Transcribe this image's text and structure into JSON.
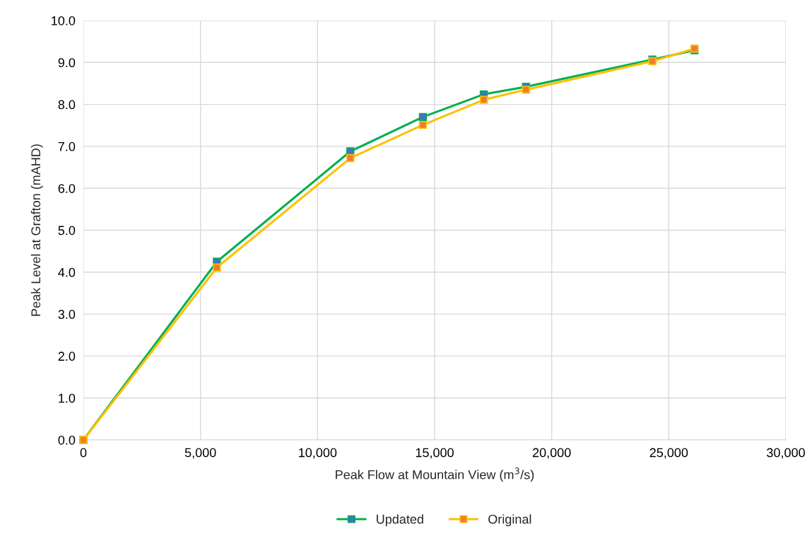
{
  "chart_data": {
    "type": "line",
    "xlabel": "Peak Flow at Mountain View (m$^{3}$/s)",
    "ylabel": "Peak Level at Grafton (mAHD)",
    "xlim": [
      0,
      30000
    ],
    "ylim": [
      0,
      10
    ],
    "xticks": [
      {
        "value": 0,
        "label": "0"
      },
      {
        "value": 5000,
        "label": "5,000"
      },
      {
        "value": 10000,
        "label": "10,000"
      },
      {
        "value": 15000,
        "label": "15,000"
      },
      {
        "value": 20000,
        "label": "20,000"
      },
      {
        "value": 25000,
        "label": "25,000"
      },
      {
        "value": 30000,
        "label": "30,000"
      }
    ],
    "yticks": [
      {
        "value": 0,
        "label": "0.0"
      },
      {
        "value": 1,
        "label": "1.0"
      },
      {
        "value": 2,
        "label": "2.0"
      },
      {
        "value": 3,
        "label": "3.0"
      },
      {
        "value": 4,
        "label": "4.0"
      },
      {
        "value": 5,
        "label": "5.0"
      },
      {
        "value": 6,
        "label": "6.0"
      },
      {
        "value": 7,
        "label": "7.0"
      },
      {
        "value": 8,
        "label": "8.0"
      },
      {
        "value": 9,
        "label": "9.0"
      },
      {
        "value": 10,
        "label": "10.0"
      }
    ],
    "x": [
      0,
      5700,
      11400,
      14500,
      17100,
      18900,
      24300,
      26100
    ],
    "series": [
      {
        "name": "Updated",
        "color": "#00b050",
        "values": [
          0,
          4.25,
          6.88,
          7.7,
          8.24,
          8.42,
          9.07,
          9.29
        ]
      },
      {
        "name": "Original",
        "color": "#ffc000",
        "values": [
          0,
          4.11,
          6.72,
          7.51,
          8.11,
          8.35,
          9.03,
          9.33
        ]
      }
    ],
    "grid": true,
    "legend": "bottom",
    "marker": "square",
    "line_style": "solid"
  }
}
